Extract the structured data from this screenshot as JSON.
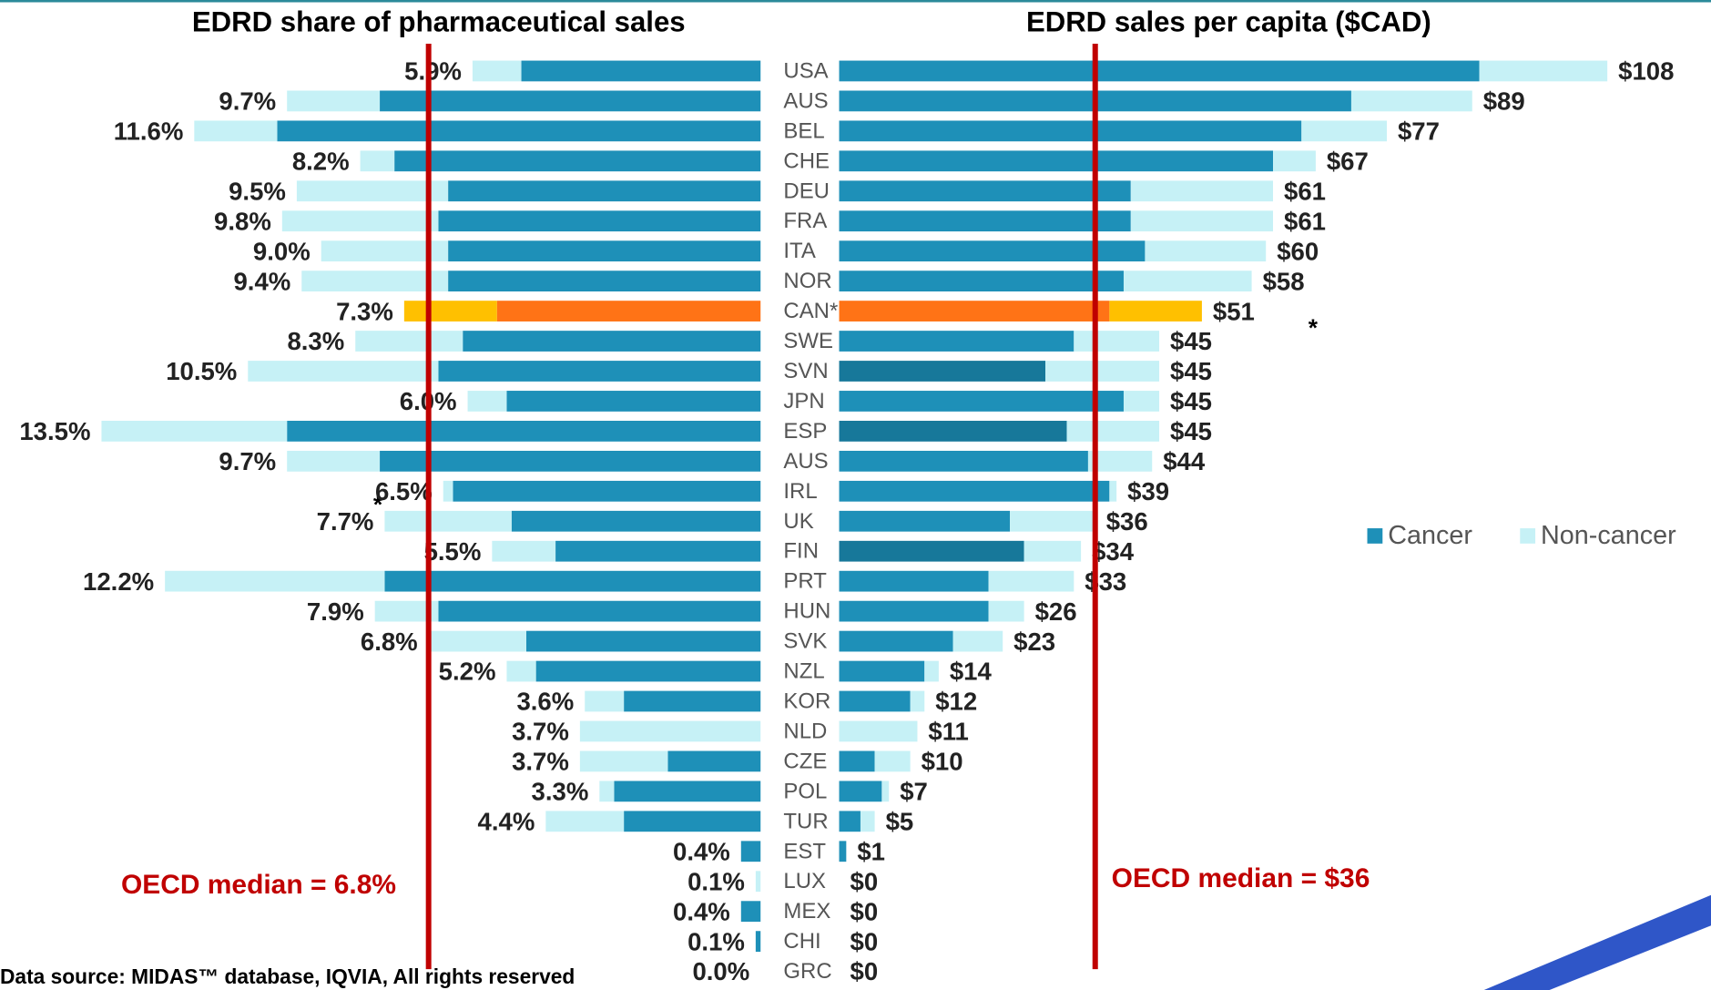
{
  "chart_data": [
    {
      "type": "bar",
      "orientation": "horizontal-mirrored",
      "title": "EDRD share of pharmaceutical sales",
      "xlim": [
        0,
        13.5
      ],
      "series": [
        {
          "name": "Cancer",
          "color": "#1e90b8",
          "values": [
            4.9,
            7.8,
            9.9,
            7.5,
            6.4,
            6.6,
            6.4,
            6.4,
            5.4,
            6.1,
            6.6,
            5.2,
            9.7,
            7.8,
            6.3,
            5.1,
            4.2,
            7.7,
            6.6,
            4.8,
            4.6,
            2.8,
            0,
            1.9,
            3.0,
            2.8,
            0.4,
            0,
            0.4,
            0.1,
            0
          ],
          "colors": [
            "#1e90b8",
            "#1e90b8",
            "#1e90b8",
            "#1e90b8",
            "#1e90b8",
            "#1e90b8",
            "#1e90b8",
            "#1e90b8",
            "#ff7316",
            "#1e90b8",
            "#1e90b8",
            "#1e90b8",
            "#1e90b8",
            "#1e90b8",
            "#1e90b8",
            "#1e90b8",
            "#1e90b8",
            "#1e90b8",
            "#1e90b8",
            "#1e90b8",
            "#1e90b8",
            "#1e90b8",
            "#1e90b8",
            "#1e90b8",
            "#1e90b8",
            "#1e90b8",
            "#1e90b8",
            "#1e90b8",
            "#1e90b8",
            "#1e90b8",
            "#1e90b8"
          ]
        },
        {
          "name": "Non-cancer",
          "color": "#c6f1f6",
          "values": [
            1.0,
            1.9,
            1.7,
            0.7,
            3.1,
            3.2,
            2.6,
            3.0,
            1.9,
            2.2,
            3.9,
            0.8,
            3.8,
            1.9,
            0.2,
            2.6,
            1.3,
            4.5,
            1.3,
            2.0,
            0.6,
            0.8,
            3.7,
            1.8,
            0.3,
            1.6,
            0,
            0.1,
            0,
            0,
            0
          ],
          "colors": [
            "#c6f1f6",
            "#c6f1f6",
            "#c6f1f6",
            "#c6f1f6",
            "#c6f1f6",
            "#c6f1f6",
            "#c6f1f6",
            "#c6f1f6",
            "#ffc000",
            "#c6f1f6",
            "#c6f1f6",
            "#c6f1f6",
            "#c6f1f6",
            "#c6f1f6",
            "#c6f1f6",
            "#c6f1f6",
            "#c6f1f6",
            "#c6f1f6",
            "#c6f1f6",
            "#c6f1f6",
            "#c6f1f6",
            "#c6f1f6",
            "#c6f1f6",
            "#c6f1f6",
            "#c6f1f6",
            "#c6f1f6",
            "#c6f1f6",
            "#c6f1f6",
            "#c6f1f6",
            "#c6f1f6",
            "#c6f1f6"
          ]
        }
      ],
      "totals": {
        "values": [
          5.9,
          9.7,
          11.6,
          8.2,
          9.5,
          9.8,
          9.0,
          9.4,
          7.3,
          8.3,
          10.5,
          6.0,
          13.5,
          9.7,
          6.5,
          7.7,
          5.5,
          12.2,
          7.9,
          6.8,
          5.2,
          3.6,
          3.7,
          3.7,
          3.3,
          4.4,
          0.4,
          0.1,
          0.4,
          0.1,
          0.0
        ],
        "value_labels": [
          "5.9%",
          "9.7%",
          "11.6%",
          "8.2%",
          "9.5%",
          "9.8%",
          "9.0%",
          "9.4%",
          "7.3%",
          "8.3%",
          "10.5%",
          "6.0%",
          "13.5%",
          "9.7%",
          "6.5%",
          "7.7%",
          "5.5%",
          "12.2%",
          "7.9%",
          "6.8%",
          "5.2%",
          "3.6%",
          "3.7%",
          "3.7%",
          "3.3%",
          "4.4%",
          "0.4%",
          "0.1%",
          "0.4%",
          "0.1%",
          "0.0%"
        ]
      },
      "median": {
        "text": "OECD median = 6.8%",
        "value": 6.8,
        "color": "#c00000"
      },
      "annotations": [
        "*"
      ],
      "source": "Data source: MIDAS™ database, IQVIA, All rights reserved"
    },
    {
      "type": "bar",
      "orientation": "horizontal",
      "title": "EDRD sales per capita ($CAD)",
      "categories": [
        "USA",
        "AUS",
        "BEL",
        "CHE",
        "DEU",
        "FRA",
        "ITA",
        "NOR",
        "CAN*",
        "SWE",
        "SVN",
        "JPN",
        "ESP",
        "AUS",
        "IRL",
        "UK",
        "FIN",
        "PRT",
        "HUN",
        "SVK",
        "NZL",
        "KOR",
        "NLD",
        "CZE",
        "POL",
        "TUR",
        "EST",
        "LUX",
        "MEX",
        "CHI",
        "GRC"
      ],
      "xlim": [
        0,
        108
      ],
      "series": [
        {
          "name": "Cancer",
          "color": "#1e90b8",
          "values": [
            90,
            72,
            65,
            61,
            41,
            41,
            43,
            40,
            38,
            33,
            29,
            40,
            32,
            35,
            38,
            24,
            26,
            21,
            21,
            16,
            12,
            10,
            0,
            5,
            6,
            3,
            1,
            0,
            0,
            0,
            0
          ],
          "colors": [
            "#1e90b8",
            "#1e90b8",
            "#1e90b8",
            "#1e90b8",
            "#1e90b8",
            "#1e90b8",
            "#1e90b8",
            "#1e90b8",
            "#ff7316",
            "#1e90b8",
            "#17789a",
            "#1e90b8",
            "#17789a",
            "#1e90b8",
            "#1e90b8",
            "#1e90b8",
            "#17789a",
            "#1e90b8",
            "#1e90b8",
            "#1e90b8",
            "#1e90b8",
            "#1e90b8",
            "#1e90b8",
            "#1e90b8",
            "#1e90b8",
            "#1e90b8",
            "#1e90b8",
            "#1e90b8",
            "#1e90b8",
            "#1e90b8",
            "#1e90b8"
          ]
        },
        {
          "name": "Non-cancer",
          "color": "#c6f1f6",
          "values": [
            18,
            17,
            12,
            6,
            20,
            20,
            17,
            18,
            13,
            12,
            16,
            5,
            13,
            9,
            1,
            12,
            8,
            12,
            5,
            7,
            2,
            2,
            11,
            5,
            1,
            2,
            0,
            0,
            0,
            0,
            0
          ],
          "colors": [
            "#c6f1f6",
            "#c6f1f6",
            "#c6f1f6",
            "#c6f1f6",
            "#c6f1f6",
            "#c6f1f6",
            "#c6f1f6",
            "#c6f1f6",
            "#ffc000",
            "#c6f1f6",
            "#c6f1f6",
            "#c6f1f6",
            "#c6f1f6",
            "#c6f1f6",
            "#c6f1f6",
            "#c6f1f6",
            "#c6f1f6",
            "#c6f1f6",
            "#c6f1f6",
            "#c6f1f6",
            "#c6f1f6",
            "#c6f1f6",
            "#c6f1f6",
            "#c6f1f6",
            "#c6f1f6",
            "#c6f1f6",
            "#c6f1f6",
            "#c6f1f6",
            "#c6f1f6",
            "#c6f1f6",
            "#c6f1f6"
          ]
        }
      ],
      "totals": {
        "values": [
          108,
          89,
          77,
          67,
          61,
          61,
          60,
          58,
          51,
          45,
          45,
          45,
          45,
          44,
          39,
          36,
          34,
          33,
          26,
          23,
          14,
          12,
          11,
          10,
          7,
          5,
          1,
          0,
          0,
          0,
          0
        ],
        "value_labels": [
          "$108",
          "$89",
          "$77",
          "$67",
          "$61",
          "$61",
          "$60",
          "$58",
          "$51",
          "$45",
          "$45",
          "$45",
          "$45",
          "$44",
          "$39",
          "$36",
          "$34",
          "$33",
          "$26",
          "$23",
          "$14",
          "$12",
          "$11",
          "$10",
          "$7",
          "$5",
          "$1",
          "$0",
          "$0",
          "$0",
          "$0"
        ]
      },
      "median": {
        "text": "OECD median = $36",
        "value": 36,
        "color": "#c00000"
      },
      "annotations": [
        "*"
      ],
      "legend": "right"
    }
  ]
}
